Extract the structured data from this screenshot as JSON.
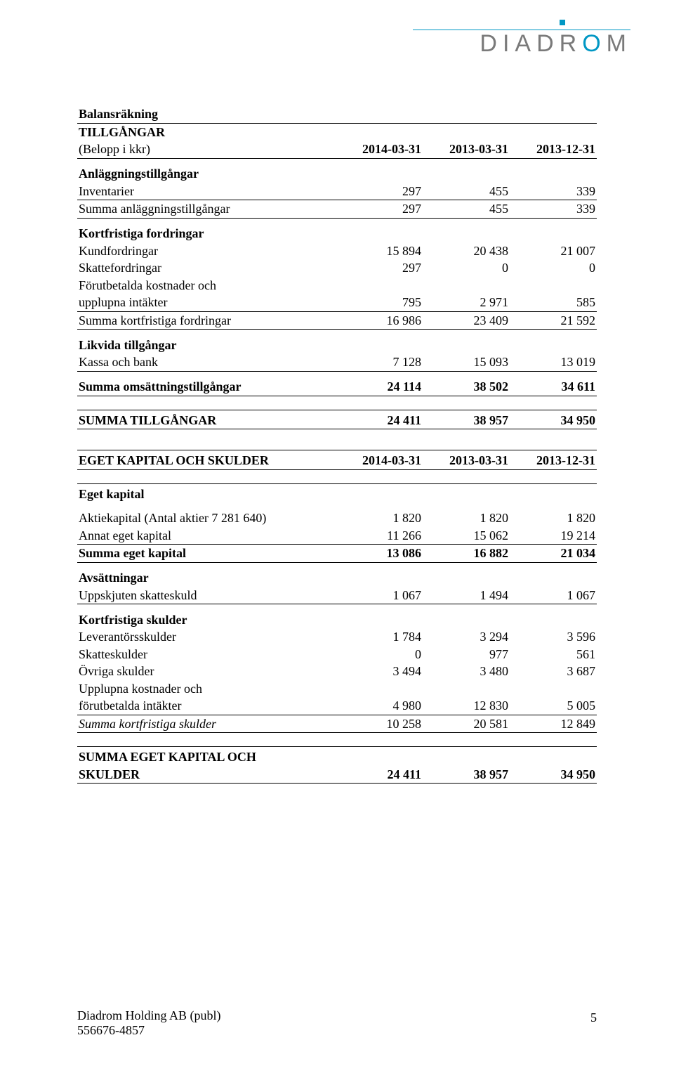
{
  "logo": {
    "text_pre": "DIADR",
    "text_blue": "O",
    "text_post": "M"
  },
  "colors": {
    "accent": "#0097c4",
    "text": "#000000",
    "logo_grey": "#7a7a7a"
  },
  "typography": {
    "body_family": "Times New Roman",
    "body_size_pt": 13,
    "logo_family": "Arial"
  },
  "balance": {
    "title": "Balansräkning",
    "assets_header": "TILLGÅNGAR",
    "unit": "(Belopp i kkr)",
    "cols": [
      "2014-03-31",
      "2013-03-31",
      "2013-12-31"
    ],
    "fixed_assets_header": "Anläggningstillgångar",
    "inventory": {
      "label": "Inventarier",
      "v": [
        "297",
        "455",
        "339"
      ]
    },
    "sum_fixed": {
      "label": "Summa anläggningstillgångar",
      "v": [
        "297",
        "455",
        "339"
      ]
    },
    "st_recv_header": "Kortfristiga fordringar",
    "trade_recv": {
      "label": "Kundfordringar",
      "v": [
        "15 894",
        "20 438",
        "21 007"
      ]
    },
    "tax_recv": {
      "label": "Skattefordringar",
      "v": [
        "297",
        "0",
        "0"
      ]
    },
    "prepaid": {
      "label": "Förutbetalda kostnader och",
      "label2": "upplupna intäkter",
      "v": [
        "795",
        "2 971",
        "585"
      ]
    },
    "sum_st_recv": {
      "label": "Summa kortfristiga fordringar",
      "v": [
        "16 986",
        "23 409",
        "21 592"
      ]
    },
    "liquid_header": "Likvida tillgångar",
    "cash": {
      "label": "Kassa och bank",
      "v": [
        "7 128",
        "15 093",
        "13 019"
      ]
    },
    "sum_current": {
      "label": "Summa omsättningstillgångar",
      "v": [
        "24 114",
        "38 502",
        "34 611"
      ]
    },
    "sum_assets": {
      "label": "SUMMA TILLGÅNGAR",
      "v": [
        "24 411",
        "38 957",
        "34 950"
      ]
    }
  },
  "equity": {
    "title": "EGET KAPITAL OCH SKULDER",
    "cols": [
      "2014-03-31",
      "2013-03-31",
      "2013-12-31"
    ],
    "equity_header": "Eget kapital",
    "share_cap": {
      "label": "Aktiekapital (Antal aktier 7 281 640)",
      "v": [
        "1 820",
        "1 820",
        "1 820"
      ]
    },
    "other_eq": {
      "label": "Annat eget kapital",
      "v": [
        "11 266",
        "15 062",
        "19 214"
      ]
    },
    "sum_eq": {
      "label": "Summa eget kapital",
      "v": [
        "13 086",
        "16 882",
        "21 034"
      ]
    },
    "provisions_header": "Avsättningar",
    "def_tax": {
      "label": "Uppskjuten skatteskuld",
      "v": [
        "1 067",
        "1 494",
        "1 067"
      ]
    },
    "st_liab_header": "Kortfristiga skulder",
    "trade_pay": {
      "label": "Leverantörsskulder",
      "v": [
        "1 784",
        "3 294",
        "3 596"
      ]
    },
    "tax_liab": {
      "label": "Skatteskulder",
      "v": [
        "0",
        "977",
        "561"
      ]
    },
    "other_liab": {
      "label": "Övriga skulder",
      "v": [
        "3 494",
        "3 480",
        "3 687"
      ]
    },
    "accrued": {
      "label": "Upplupna kostnader och",
      "label2": "förutbetalda intäkter",
      "v": [
        "4 980",
        "12 830",
        "5 005"
      ]
    },
    "sum_st_liab": {
      "label": "Summa kortfristiga skulder",
      "v": [
        "10 258",
        "20 581",
        "12 849"
      ]
    },
    "sum_eq_liab_1": "SUMMA EGET KAPITAL OCH",
    "sum_eq_liab_2": "SKULDER",
    "sum_eq_liab_v": [
      "24 411",
      "38 957",
      "34 950"
    ]
  },
  "footer": {
    "company": "Diadrom Holding AB (publ)",
    "orgnr": "556676-4857",
    "page": "5"
  }
}
